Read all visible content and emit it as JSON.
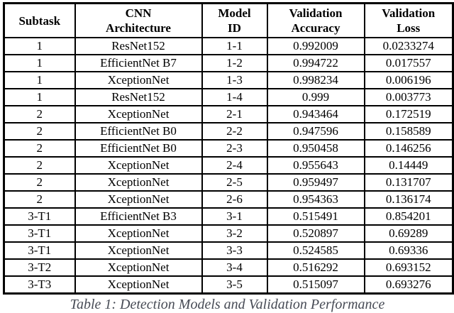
{
  "table": {
    "columns": [
      {
        "key": "subtask",
        "label": "Subtask"
      },
      {
        "key": "architecture",
        "label": "CNN\nArchitecture"
      },
      {
        "key": "model_id",
        "label": "Model\nID"
      },
      {
        "key": "val_accuracy",
        "label": "Validation\nAccuracy"
      },
      {
        "key": "val_loss",
        "label": "Validation\nLoss"
      }
    ],
    "rows": [
      {
        "subtask": "1",
        "architecture": "ResNet152",
        "model_id": "1-1",
        "val_accuracy": "0.992009",
        "val_loss": "0.0233274"
      },
      {
        "subtask": "1",
        "architecture": "EfficientNet B7",
        "model_id": "1-2",
        "val_accuracy": "0.994722",
        "val_loss": "0.017557"
      },
      {
        "subtask": "1",
        "architecture": "XceptionNet",
        "model_id": "1-3",
        "val_accuracy": "0.998234",
        "val_loss": "0.006196"
      },
      {
        "subtask": "1",
        "architecture": "ResNet152",
        "model_id": "1-4",
        "val_accuracy": "0.999",
        "val_loss": "0.003773"
      },
      {
        "subtask": "2",
        "architecture": "XceptionNet",
        "model_id": "2-1",
        "val_accuracy": "0.943464",
        "val_loss": "0.172519"
      },
      {
        "subtask": "2",
        "architecture": "EfficientNet B0",
        "model_id": "2-2",
        "val_accuracy": "0.947596",
        "val_loss": "0.158589"
      },
      {
        "subtask": "2",
        "architecture": "EfficientNet B0",
        "model_id": "2-3",
        "val_accuracy": "0.950458",
        "val_loss": "0.146256"
      },
      {
        "subtask": "2",
        "architecture": "XceptionNet",
        "model_id": "2-4",
        "val_accuracy": "0.955643",
        "val_loss": "0.14449"
      },
      {
        "subtask": "2",
        "architecture": "XceptionNet",
        "model_id": "2-5",
        "val_accuracy": "0.959497",
        "val_loss": "0.131707"
      },
      {
        "subtask": "2",
        "architecture": "XceptionNet",
        "model_id": "2-6",
        "val_accuracy": "0.954363",
        "val_loss": "0.136174"
      },
      {
        "subtask": "3-T1",
        "architecture": "EfficientNet B3",
        "model_id": "3-1",
        "val_accuracy": "0.515491",
        "val_loss": "0.854201"
      },
      {
        "subtask": "3-T1",
        "architecture": "XceptionNet",
        "model_id": "3-2",
        "val_accuracy": "0.520897",
        "val_loss": "0.69289"
      },
      {
        "subtask": "3-T1",
        "architecture": "XceptionNet",
        "model_id": "3-3",
        "val_accuracy": "0.524585",
        "val_loss": "0.69336"
      },
      {
        "subtask": "3-T2",
        "architecture": "XceptionNet",
        "model_id": "3-4",
        "val_accuracy": "0.516292",
        "val_loss": "0.693152"
      },
      {
        "subtask": "3-T3",
        "architecture": "XceptionNet",
        "model_id": "3-5",
        "val_accuracy": "0.515097",
        "val_loss": "0.693276"
      }
    ]
  },
  "caption": "Table 1: Detection Models and Validation Performance",
  "colors": {
    "border": "#000000",
    "text": "#000000",
    "caption": "#474b55",
    "background": "#ffffff"
  }
}
